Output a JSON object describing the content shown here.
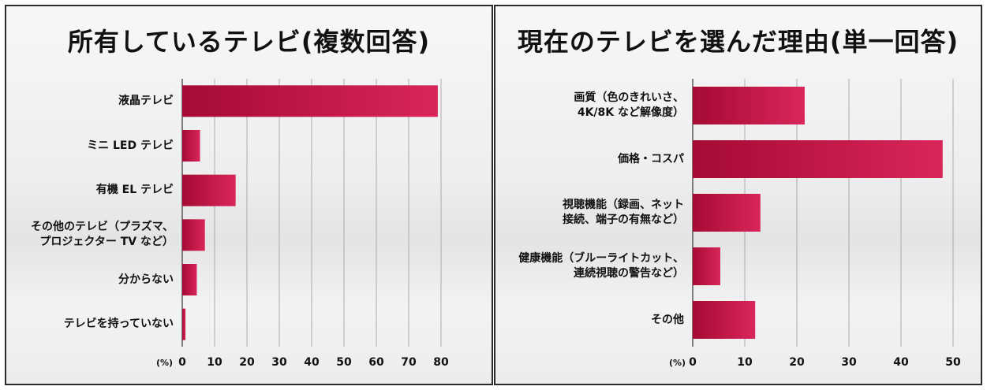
{
  "colors": {
    "bar_dark": "#a50a35",
    "bar_light": "#d9265a"
  },
  "chart_data": [
    {
      "type": "bar",
      "orientation": "horizontal",
      "title": "所有しているテレビ(複数回答)",
      "unit_label": "(%)",
      "categories": [
        "液晶テレビ",
        "ミニ LED テレビ",
        "有機 EL テレビ",
        "その他のテレビ（プラズマ、\nプロジェクター TV など）",
        "分からない",
        "テレビを持っていない"
      ],
      "values": [
        79,
        5.5,
        16.5,
        7,
        4.5,
        1
      ],
      "xlim": [
        0,
        80
      ],
      "ticks": [
        "0",
        "10",
        "20",
        "30",
        "40",
        "50",
        "60",
        "70",
        "80"
      ],
      "grid": true
    },
    {
      "type": "bar",
      "orientation": "horizontal",
      "title": "現在のテレビを選んだ理由(単一回答)",
      "unit_label": "(%)",
      "categories": [
        "画質（色のきれいさ、\n4K/8K など解像度）",
        "価格・コスパ",
        "視聴機能（録画、ネット\n接続、端子の有無など）",
        "健康機能（ブルーライトカット、\n連続視聴の警告など）",
        "その他"
      ],
      "values": [
        21.5,
        48,
        13,
        5.3,
        12
      ],
      "xlim": [
        0,
        50
      ],
      "ticks": [
        "0",
        "10",
        "20",
        "30",
        "40",
        "50"
      ],
      "grid": true
    }
  ]
}
